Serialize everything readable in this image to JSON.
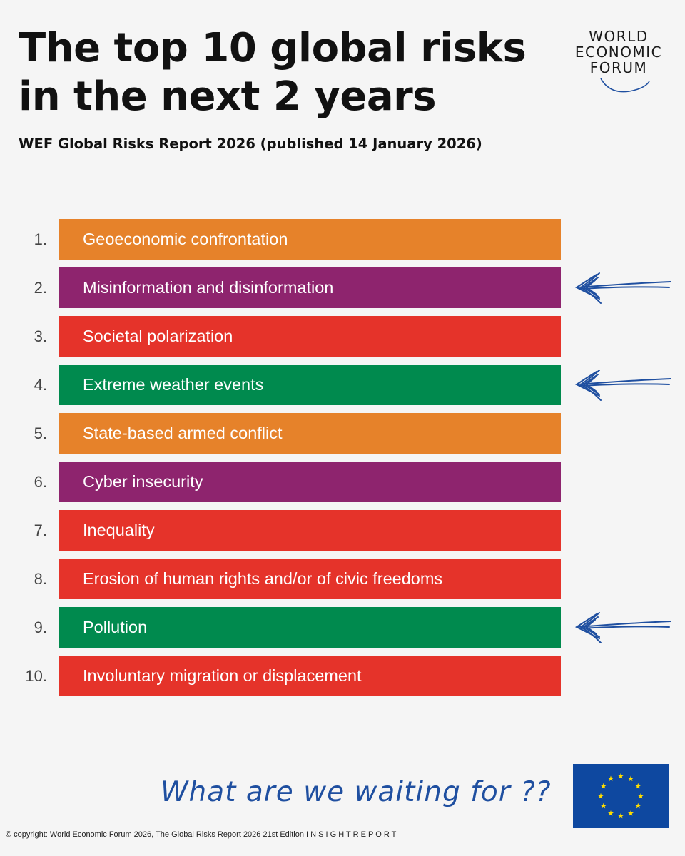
{
  "header": {
    "title_line1": "The top 10 global risks",
    "title_line2": "in the next 2 years",
    "subtitle": "WEF Global Risks Report 2026 (published 14 January 2026)"
  },
  "logo": {
    "line1": "WORLD",
    "line2": "ECONOMIC",
    "line3": "FORUM"
  },
  "colors": {
    "orange": "#e6822a",
    "purple": "#8e246e",
    "red": "#e5332a",
    "green": "#008a4e",
    "arrow": "#1f4fa0",
    "eu_blue": "#0e48a0",
    "eu_star": "#ffdd00"
  },
  "risks": [
    {
      "rank": "1.",
      "label": "Geoeconomic confrontation",
      "color": "orange",
      "arrow": false
    },
    {
      "rank": "2.",
      "label": "Misinformation and disinformation",
      "color": "purple",
      "arrow": true
    },
    {
      "rank": "3.",
      "label": "Societal polarization",
      "color": "red",
      "arrow": false
    },
    {
      "rank": "4.",
      "label": "Extreme weather events",
      "color": "green",
      "arrow": true
    },
    {
      "rank": "5.",
      "label": "State-based armed conflict",
      "color": "orange",
      "arrow": false
    },
    {
      "rank": "6.",
      "label": "Cyber insecurity",
      "color": "purple",
      "arrow": false
    },
    {
      "rank": "7.",
      "label": "Inequality",
      "color": "red",
      "arrow": false
    },
    {
      "rank": "8.",
      "label": "Erosion of human rights and/or of civic freedoms",
      "color": "red",
      "arrow": false
    },
    {
      "rank": "9.",
      "label": "Pollution",
      "color": "green",
      "arrow": true
    },
    {
      "rank": "10.",
      "label": "Involuntary migration or displacement",
      "color": "red",
      "arrow": false
    }
  ],
  "footer": {
    "tagline": "What are we waiting for ??",
    "flag_icon": "eu-flag-icon",
    "copyright": "© copyright: World Economic Forum 2026, The Global Risks Report 2026 21st Edition I N S I G H T R E P O R T"
  }
}
